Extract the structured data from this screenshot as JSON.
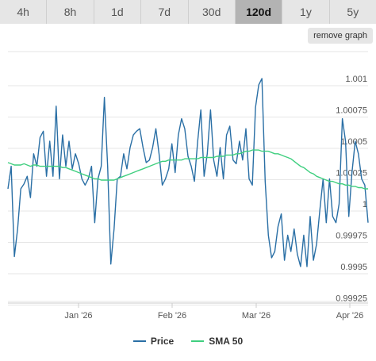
{
  "range_tabs": [
    {
      "label": "4h",
      "active": false
    },
    {
      "label": "8h",
      "active": false
    },
    {
      "label": "1d",
      "active": false
    },
    {
      "label": "7d",
      "active": false
    },
    {
      "label": "30d",
      "active": false
    },
    {
      "label": "120d",
      "active": true
    },
    {
      "label": "1y",
      "active": false
    },
    {
      "label": "5y",
      "active": false
    }
  ],
  "remove_graph_label": "remove graph",
  "legend": {
    "price_label": "Price",
    "sma_label": "SMA 50"
  },
  "colors": {
    "price": "#2a6fa5",
    "sma": "#3fcf7f",
    "grid": "#e6e6e6",
    "active_tab": "#b3b3b3"
  },
  "chart_data": {
    "type": "line",
    "title": "",
    "xlabel": "",
    "ylabel": "",
    "x_ticks": [
      "Jan '26",
      "Feb '26",
      "Mar '26",
      "Apr '26"
    ],
    "y_ticks": [
      "0.99925",
      "0.9995",
      "0.99975",
      "1",
      "1.00025",
      "1.0005",
      "1.00075",
      "1.001"
    ],
    "ylim": [
      0.9991,
      1.0011
    ],
    "grid": true,
    "legend_position": "bottom",
    "series": [
      {
        "name": "Price",
        "values": [
          1.00012,
          1.0003,
          0.99958,
          0.9998,
          1.00012,
          1.00016,
          1.00022,
          1.00005,
          1.0004,
          1.0003,
          1.00053,
          1.00058,
          1.00022,
          1.0005,
          1.00022,
          1.00078,
          1.0002,
          1.00055,
          1.0003,
          1.0005,
          1.00028,
          1.0004,
          1.00032,
          1.0002,
          1.00015,
          1.0002,
          1.0003,
          0.99985,
          1.0002,
          1.0003,
          1.00085,
          1.0003,
          0.99952,
          0.9998,
          1.0002,
          1.00022,
          1.0004,
          1.00028,
          1.00045,
          1.00055,
          1.00058,
          1.0006,
          1.00045,
          1.00033,
          1.00035,
          1.00045,
          1.0006,
          1.0004,
          1.00015,
          1.0002,
          1.00028,
          1.00048,
          1.00025,
          1.00055,
          1.00068,
          1.0006,
          1.00038,
          1.0003,
          1.00018,
          1.0005,
          1.00075,
          1.00022,
          1.0004,
          1.00075,
          1.00035,
          1.00022,
          1.00045,
          1.0002,
          1.00055,
          1.00062,
          1.00035,
          1.00032,
          1.0005,
          1.00035,
          1.0006,
          1.0002,
          1.00015,
          1.00077,
          1.00095,
          1.001,
          1.00018,
          0.99975,
          0.99957,
          0.99962,
          0.99982,
          0.99992,
          0.99955,
          0.99975,
          0.99962,
          0.9998,
          0.9996,
          0.9995,
          0.99975,
          0.9995,
          0.9999,
          0.99955,
          0.99968,
          0.99995,
          1.0002,
          0.99985,
          1.0002,
          0.9999,
          0.99985,
          1.0,
          1.00068,
          1.0005,
          0.9999,
          1.00025,
          1.0005,
          1.0004,
          1.0002,
          1.00015,
          0.99985
        ]
      },
      {
        "name": "SMA 50",
        "values": [
          1.00033,
          1.00032,
          1.00031,
          1.00031,
          1.00031,
          1.00032,
          1.00031,
          1.0003,
          1.00031,
          1.00031,
          1.0003,
          1.0003,
          1.0003,
          1.0003,
          1.0003,
          1.0003,
          1.0003,
          1.00029,
          1.00029,
          1.00028,
          1.00027,
          1.00026,
          1.00025,
          1.00024,
          1.00023,
          1.00022,
          1.00021,
          1.0002,
          1.0002,
          1.00019,
          1.00019,
          1.00019,
          1.00019,
          1.00019,
          1.0002,
          1.00021,
          1.00022,
          1.00023,
          1.00024,
          1.00025,
          1.00026,
          1.00027,
          1.00028,
          1.00029,
          1.0003,
          1.00031,
          1.00032,
          1.00033,
          1.00034,
          1.00034,
          1.00035,
          1.00035,
          1.00035,
          1.00035,
          1.00035,
          1.00036,
          1.00036,
          1.00036,
          1.00036,
          1.00036,
          1.00037,
          1.00037,
          1.00037,
          1.00037,
          1.00037,
          1.00038,
          1.00038,
          1.00038,
          1.00039,
          1.00039,
          1.00039,
          1.0004,
          1.0004,
          1.00041,
          1.00042,
          1.00042,
          1.00043,
          1.00043,
          1.00043,
          1.00042,
          1.00042,
          1.00042,
          1.00041,
          1.0004,
          1.0004,
          1.00039,
          1.00038,
          1.00037,
          1.00036,
          1.00034,
          1.00032,
          1.0003,
          1.00029,
          1.00027,
          1.00025,
          1.00024,
          1.00022,
          1.00021,
          1.0002,
          1.00019,
          1.00018,
          1.00018,
          1.00017,
          1.00016,
          1.00016,
          1.00015,
          1.00015,
          1.00014,
          1.00014,
          1.00013,
          1.00013,
          1.00012,
          1.00012
        ]
      }
    ]
  }
}
